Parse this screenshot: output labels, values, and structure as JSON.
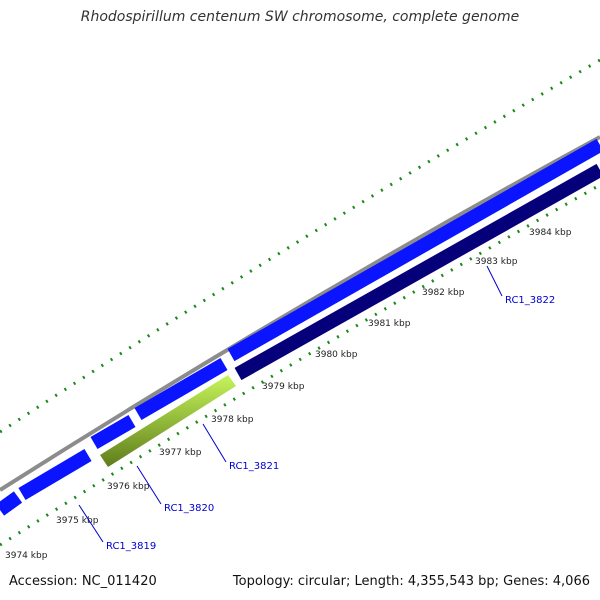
{
  "title": "Rhodospirillum centenum SW chromosome, complete genome",
  "accession_label": "Accession: NC_011420",
  "summary_label": "Topology: circular; Length: 4,355,543 bp; Genes: 4,066",
  "colors": {
    "background": "#ffffff",
    "backbone": "#8c8c8c",
    "forward_gene": "#0a14ff",
    "reverse_gene": "#05007a",
    "highlight_gene": "#99dd33",
    "tick_mark": "#1a8a1a",
    "label_text": "#0000cc"
  },
  "kbp_labels": [
    "3974 kbp",
    "3975 kbp",
    "3976 kbp",
    "3977 kbp",
    "3978 kbp",
    "3979 kbp",
    "3980 kbp",
    "3981 kbp",
    "3982 kbp",
    "3983 kbp",
    "3984 kbp"
  ],
  "gene_labels": [
    "RC1_3819",
    "RC1_3820",
    "RC1_3821",
    "RC1_3822"
  ]
}
